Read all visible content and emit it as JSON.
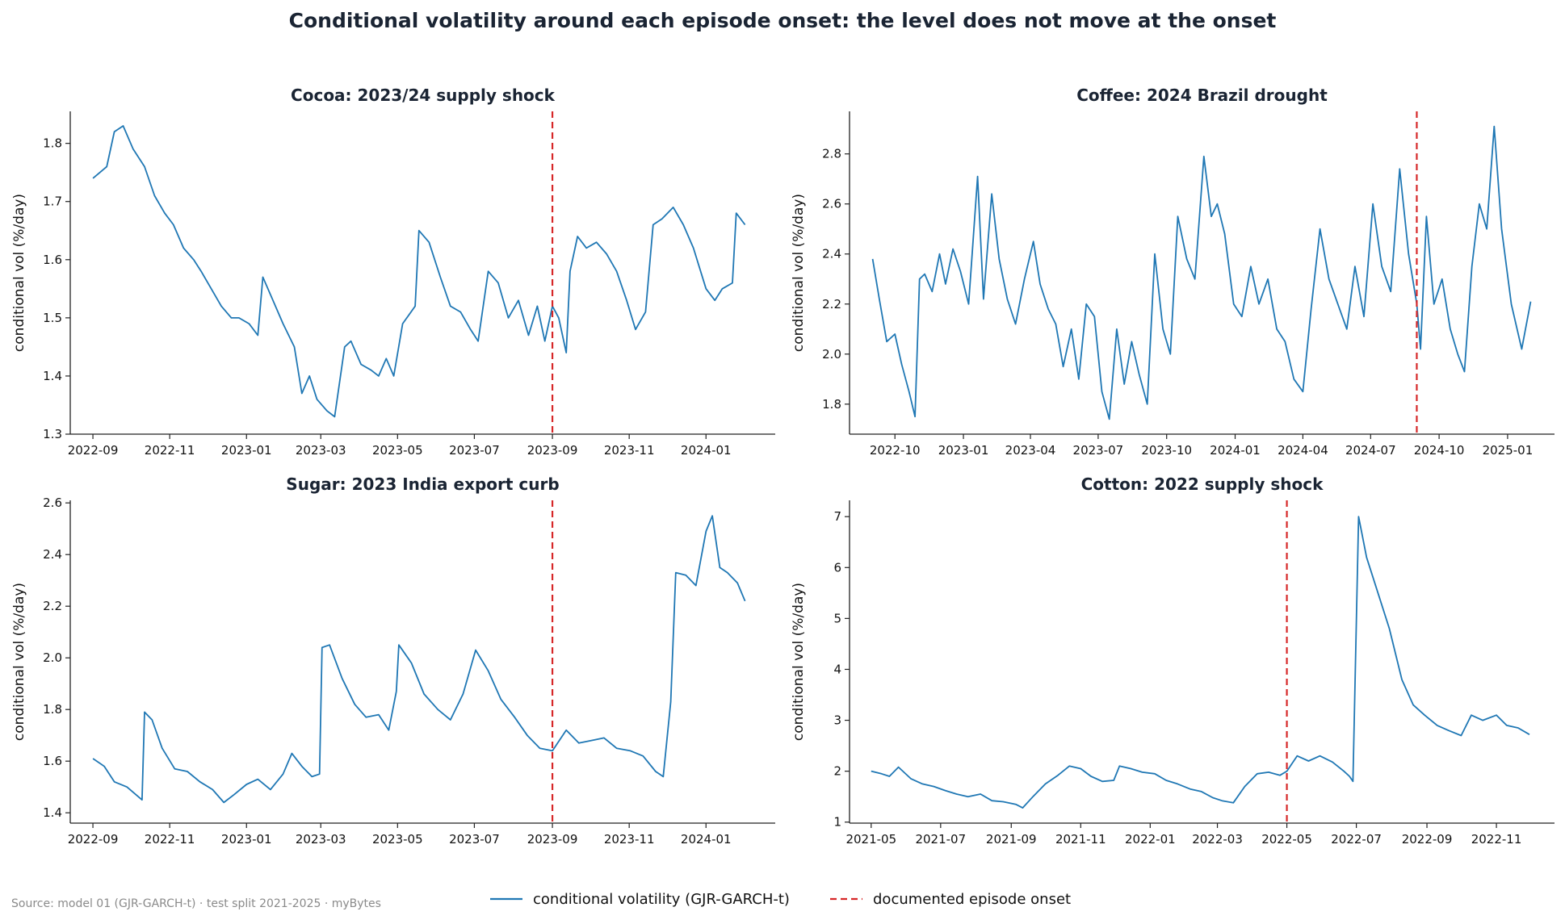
{
  "figure": {
    "title": "Conditional volatility around each episode onset: the level does not move at the onset",
    "source_note": "Source: model 01 (GJR-GARCH-t) · test split 2021-2025 · myBytes",
    "legend": {
      "placement": "bottom-center",
      "items": [
        {
          "label": "conditional volatility (GJR-GARCH-t)",
          "style": "solid",
          "color": "#1f77b4"
        },
        {
          "label": "documented episode onset",
          "style": "dashed",
          "color": "#d62728"
        }
      ]
    },
    "colors": {
      "series": "#1f77b4",
      "onset": "#d62728",
      "title": "#1a2433"
    }
  },
  "chart_data": [
    {
      "type": "line",
      "title": "Cocoa: 2023/24 supply shock",
      "xlabel": "",
      "ylabel": "conditional vol (%/day)",
      "xlim": [
        "2022-08-14",
        "2024-02-25"
      ],
      "ylim": [
        1.3,
        1.855
      ],
      "yticks": [
        1.3,
        1.4,
        1.5,
        1.6,
        1.7,
        1.8
      ],
      "ytick_labels": [
        "1.3",
        "1.4",
        "1.5",
        "1.6",
        "1.7",
        "1.8"
      ],
      "xticks": [
        "2022-09-01",
        "2022-11-01",
        "2023-01-01",
        "2023-03-01",
        "2023-05-01",
        "2023-07-01",
        "2023-09-01",
        "2023-11-01",
        "2024-01-01"
      ],
      "xtick_labels": [
        "2022-09",
        "2022-11",
        "2023-01",
        "2023-03",
        "2023-05",
        "2023-07",
        "2023-09",
        "2023-11",
        "2024-01"
      ],
      "onset": "2023-09-01",
      "grid": false,
      "series": [
        {
          "color": "#1f77b4",
          "x": [
            "2022-09-01",
            "2022-09-12",
            "2022-09-18",
            "2022-09-25",
            "2022-10-03",
            "2022-10-12",
            "2022-10-20",
            "2022-10-28",
            "2022-11-04",
            "2022-11-12",
            "2022-11-20",
            "2022-11-26",
            "2022-12-04",
            "2022-12-12",
            "2022-12-20",
            "2022-12-26",
            "2023-01-03",
            "2023-01-10",
            "2023-01-14",
            "2023-01-22",
            "2023-01-30",
            "2023-02-08",
            "2023-02-14",
            "2023-02-20",
            "2023-02-26",
            "2023-03-06",
            "2023-03-12",
            "2023-03-20",
            "2023-03-25",
            "2023-04-02",
            "2023-04-10",
            "2023-04-16",
            "2023-04-22",
            "2023-04-28",
            "2023-05-05",
            "2023-05-15",
            "2023-05-18",
            "2023-05-26",
            "2023-06-04",
            "2023-06-12",
            "2023-06-20",
            "2023-06-28",
            "2023-07-04",
            "2023-07-12",
            "2023-07-20",
            "2023-07-28",
            "2023-08-05",
            "2023-08-13",
            "2023-08-20",
            "2023-08-26",
            "2023-09-01",
            "2023-09-06",
            "2023-09-12",
            "2023-09-15",
            "2023-09-21",
            "2023-09-28",
            "2023-10-06",
            "2023-10-14",
            "2023-10-22",
            "2023-10-30",
            "2023-11-06",
            "2023-11-14",
            "2023-11-20",
            "2023-11-27",
            "2023-12-06",
            "2023-12-14",
            "2023-12-22",
            "2024-01-01",
            "2024-01-08",
            "2024-01-14",
            "2024-01-22",
            "2024-01-25",
            "2024-02-01"
          ],
          "values": [
            1.74,
            1.76,
            1.82,
            1.83,
            1.79,
            1.76,
            1.71,
            1.68,
            1.66,
            1.62,
            1.6,
            1.58,
            1.55,
            1.52,
            1.5,
            1.5,
            1.49,
            1.47,
            1.57,
            1.53,
            1.49,
            1.45,
            1.37,
            1.4,
            1.36,
            1.34,
            1.33,
            1.45,
            1.46,
            1.42,
            1.41,
            1.4,
            1.43,
            1.4,
            1.49,
            1.52,
            1.65,
            1.63,
            1.57,
            1.52,
            1.51,
            1.48,
            1.46,
            1.58,
            1.56,
            1.5,
            1.53,
            1.47,
            1.52,
            1.46,
            1.52,
            1.5,
            1.44,
            1.58,
            1.64,
            1.62,
            1.63,
            1.61,
            1.58,
            1.53,
            1.48,
            1.51,
            1.66,
            1.67,
            1.69,
            1.66,
            1.62,
            1.55,
            1.53,
            1.55,
            1.56,
            1.68,
            1.66
          ]
        }
      ]
    },
    {
      "type": "line",
      "title": "Coffee: 2024 Brazil drought",
      "xlabel": "",
      "ylabel": "conditional vol (%/day)",
      "xlim": [
        "2022-08-01",
        "2025-03-05"
      ],
      "ylim": [
        1.68,
        2.97
      ],
      "yticks": [
        1.8,
        2.0,
        2.2,
        2.4,
        2.6,
        2.8
      ],
      "ytick_labels": [
        "1.8",
        "2.0",
        "2.2",
        "2.4",
        "2.6",
        "2.8"
      ],
      "xticks": [
        "2022-10-01",
        "2023-01-01",
        "2023-04-01",
        "2023-07-01",
        "2023-10-01",
        "2024-01-01",
        "2024-04-01",
        "2024-07-01",
        "2024-10-01",
        "2025-01-01"
      ],
      "xtick_labels": [
        "2022-10",
        "2023-01",
        "2023-04",
        "2023-07",
        "2023-10",
        "2024-01",
        "2024-04",
        "2024-07",
        "2024-10",
        "2025-01"
      ],
      "onset": "2024-09-01",
      "grid": false,
      "series": [
        {
          "color": "#1f77b4",
          "x": [
            "2022-09-01",
            "2022-09-10",
            "2022-09-20",
            "2022-10-01",
            "2022-10-10",
            "2022-10-20",
            "2022-10-28",
            "2022-11-03",
            "2022-11-10",
            "2022-11-20",
            "2022-11-30",
            "2022-12-08",
            "2022-12-18",
            "2022-12-28",
            "2023-01-08",
            "2023-01-20",
            "2023-01-28",
            "2023-02-08",
            "2023-02-18",
            "2023-03-01",
            "2023-03-12",
            "2023-03-24",
            "2023-04-05",
            "2023-04-14",
            "2023-04-25",
            "2023-05-05",
            "2023-05-15",
            "2023-05-26",
            "2023-06-05",
            "2023-06-15",
            "2023-06-26",
            "2023-07-06",
            "2023-07-16",
            "2023-07-26",
            "2023-08-05",
            "2023-08-15",
            "2023-08-25",
            "2023-09-05",
            "2023-09-15",
            "2023-09-26",
            "2023-10-06",
            "2023-10-16",
            "2023-10-28",
            "2023-11-08",
            "2023-11-20",
            "2023-11-30",
            "2023-12-08",
            "2023-12-18",
            "2023-12-30",
            "2024-01-10",
            "2024-01-22",
            "2024-02-02",
            "2024-02-14",
            "2024-02-26",
            "2024-03-08",
            "2024-03-20",
            "2024-04-01",
            "2024-04-12",
            "2024-04-24",
            "2024-05-06",
            "2024-05-18",
            "2024-05-30",
            "2024-06-10",
            "2024-06-22",
            "2024-07-04",
            "2024-07-16",
            "2024-07-28",
            "2024-08-09",
            "2024-08-21",
            "2024-09-01",
            "2024-09-06",
            "2024-09-14",
            "2024-09-24",
            "2024-10-05",
            "2024-10-16",
            "2024-10-26",
            "2024-11-04",
            "2024-11-14",
            "2024-11-24",
            "2024-12-04",
            "2024-12-14",
            "2024-12-24",
            "2025-01-06",
            "2025-01-20",
            "2025-02-01"
          ],
          "values": [
            2.38,
            2.22,
            2.05,
            2.08,
            1.96,
            1.85,
            1.75,
            2.3,
            2.32,
            2.25,
            2.4,
            2.28,
            2.42,
            2.33,
            2.2,
            2.71,
            2.22,
            2.64,
            2.38,
            2.22,
            2.12,
            2.3,
            2.45,
            2.28,
            2.18,
            2.12,
            1.95,
            2.1,
            1.9,
            2.2,
            2.15,
            1.85,
            1.74,
            2.1,
            1.88,
            2.05,
            1.92,
            1.8,
            2.4,
            2.1,
            2.0,
            2.55,
            2.38,
            2.3,
            2.79,
            2.55,
            2.6,
            2.48,
            2.2,
            2.15,
            2.35,
            2.2,
            2.3,
            2.1,
            2.05,
            1.9,
            1.85,
            2.18,
            2.5,
            2.3,
            2.2,
            2.1,
            2.35,
            2.15,
            2.6,
            2.35,
            2.25,
            2.74,
            2.4,
            2.2,
            2.02,
            2.55,
            2.2,
            2.3,
            2.1,
            2.0,
            1.93,
            2.35,
            2.6,
            2.5,
            2.91,
            2.5,
            2.2,
            2.02,
            2.21
          ]
        }
      ]
    },
    {
      "type": "line",
      "title": "Sugar: 2023 India export curb",
      "xlabel": "",
      "ylabel": "conditional vol (%/day)",
      "xlim": [
        "2022-08-14",
        "2024-02-25"
      ],
      "ylim": [
        1.36,
        2.61
      ],
      "yticks": [
        1.4,
        1.6,
        1.8,
        2.0,
        2.2,
        2.4,
        2.6
      ],
      "ytick_labels": [
        "1.4",
        "1.6",
        "1.8",
        "2.0",
        "2.2",
        "2.4",
        "2.6"
      ],
      "xticks": [
        "2022-09-01",
        "2022-11-01",
        "2023-01-01",
        "2023-03-01",
        "2023-05-01",
        "2023-07-01",
        "2023-09-01",
        "2023-11-01",
        "2024-01-01"
      ],
      "xtick_labels": [
        "2022-09",
        "2022-11",
        "2023-01",
        "2023-03",
        "2023-05",
        "2023-07",
        "2023-09",
        "2023-11",
        "2024-01"
      ],
      "onset": "2023-09-01",
      "grid": false,
      "series": [
        {
          "color": "#1f77b4",
          "x": [
            "2022-09-01",
            "2022-09-10",
            "2022-09-18",
            "2022-09-28",
            "2022-10-10",
            "2022-10-12",
            "2022-10-18",
            "2022-10-26",
            "2022-11-05",
            "2022-11-15",
            "2022-11-25",
            "2022-12-05",
            "2022-12-14",
            "2022-12-22",
            "2023-01-01",
            "2023-01-10",
            "2023-01-20",
            "2023-01-30",
            "2023-02-06",
            "2023-02-14",
            "2023-02-22",
            "2023-02-28",
            "2023-03-02",
            "2023-03-08",
            "2023-03-18",
            "2023-03-28",
            "2023-04-06",
            "2023-04-16",
            "2023-04-24",
            "2023-04-30",
            "2023-05-02",
            "2023-05-12",
            "2023-05-22",
            "2023-06-02",
            "2023-06-12",
            "2023-06-22",
            "2023-07-02",
            "2023-07-12",
            "2023-07-22",
            "2023-08-02",
            "2023-08-12",
            "2023-08-22",
            "2023-09-01",
            "2023-09-12",
            "2023-09-22",
            "2023-10-02",
            "2023-10-12",
            "2023-10-22",
            "2023-11-02",
            "2023-11-12",
            "2023-11-22",
            "2023-11-28",
            "2023-12-04",
            "2023-12-08",
            "2023-12-16",
            "2023-12-24",
            "2024-01-01",
            "2024-01-06",
            "2024-01-12",
            "2024-01-18",
            "2024-01-26",
            "2024-02-01"
          ],
          "values": [
            1.61,
            1.58,
            1.52,
            1.5,
            1.45,
            1.79,
            1.76,
            1.65,
            1.57,
            1.56,
            1.52,
            1.49,
            1.44,
            1.47,
            1.51,
            1.53,
            1.49,
            1.55,
            1.63,
            1.58,
            1.54,
            1.55,
            2.04,
            2.05,
            1.92,
            1.82,
            1.77,
            1.78,
            1.72,
            1.87,
            2.05,
            1.98,
            1.86,
            1.8,
            1.76,
            1.86,
            2.03,
            1.95,
            1.84,
            1.77,
            1.7,
            1.65,
            1.64,
            1.72,
            1.67,
            1.68,
            1.69,
            1.65,
            1.64,
            1.62,
            1.56,
            1.54,
            1.83,
            2.33,
            2.32,
            2.28,
            2.49,
            2.55,
            2.35,
            2.33,
            2.29,
            2.22
          ]
        }
      ]
    },
    {
      "type": "line",
      "title": "Cotton: 2022 supply shock",
      "xlabel": "",
      "ylabel": "conditional vol (%/day)",
      "xlim": [
        "2021-04-12",
        "2022-12-22"
      ],
      "ylim": [
        0.98,
        7.32
      ],
      "yticks": [
        1,
        2,
        3,
        4,
        5,
        6,
        7
      ],
      "ytick_labels": [
        "1",
        "2",
        "3",
        "4",
        "5",
        "6",
        "7"
      ],
      "xticks": [
        "2021-05-01",
        "2021-07-01",
        "2021-09-01",
        "2021-11-01",
        "2022-01-01",
        "2022-03-01",
        "2022-05-01",
        "2022-07-01",
        "2022-09-01",
        "2022-11-01"
      ],
      "xtick_labels": [
        "2021-05",
        "2021-07",
        "2021-09",
        "2021-11",
        "2022-01",
        "2022-03",
        "2022-05",
        "2022-07",
        "2022-09",
        "2022-11"
      ],
      "onset": "2022-05-01",
      "grid": false,
      "series": [
        {
          "color": "#1f77b4",
          "x": [
            "2021-05-01",
            "2021-05-10",
            "2021-05-17",
            "2021-05-25",
            "2021-06-05",
            "2021-06-15",
            "2021-06-25",
            "2021-07-05",
            "2021-07-15",
            "2021-07-25",
            "2021-08-05",
            "2021-08-15",
            "2021-08-25",
            "2021-09-05",
            "2021-09-11",
            "2021-09-20",
            "2021-10-01",
            "2021-10-12",
            "2021-10-22",
            "2021-11-01",
            "2021-11-10",
            "2021-11-20",
            "2021-11-30",
            "2021-12-05",
            "2021-12-15",
            "2021-12-25",
            "2022-01-05",
            "2022-01-15",
            "2022-01-25",
            "2022-02-05",
            "2022-02-15",
            "2022-02-25",
            "2022-03-05",
            "2022-03-15",
            "2022-03-25",
            "2022-04-05",
            "2022-04-15",
            "2022-04-25",
            "2022-05-01",
            "2022-05-10",
            "2022-05-20",
            "2022-05-30",
            "2022-06-10",
            "2022-06-20",
            "2022-06-25",
            "2022-06-28",
            "2022-07-03",
            "2022-07-10",
            "2022-07-20",
            "2022-07-30",
            "2022-08-10",
            "2022-08-20",
            "2022-08-30",
            "2022-09-10",
            "2022-09-20",
            "2022-10-01",
            "2022-10-10",
            "2022-10-20",
            "2022-11-01",
            "2022-11-10",
            "2022-11-20",
            "2022-11-30"
          ],
          "values": [
            2.0,
            1.95,
            1.9,
            2.08,
            1.85,
            1.75,
            1.7,
            1.62,
            1.55,
            1.5,
            1.55,
            1.42,
            1.4,
            1.35,
            1.28,
            1.5,
            1.75,
            1.92,
            2.1,
            2.05,
            1.9,
            1.8,
            1.82,
            2.1,
            2.05,
            1.98,
            1.95,
            1.82,
            1.75,
            1.65,
            1.6,
            1.48,
            1.42,
            1.38,
            1.7,
            1.95,
            1.98,
            1.92,
            2.0,
            2.3,
            2.2,
            2.3,
            2.18,
            2.0,
            1.9,
            1.8,
            7.0,
            6.2,
            5.5,
            4.8,
            3.8,
            3.3,
            3.1,
            2.9,
            2.8,
            2.7,
            3.1,
            3.0,
            3.1,
            2.9,
            2.85,
            2.72
          ]
        }
      ]
    }
  ]
}
